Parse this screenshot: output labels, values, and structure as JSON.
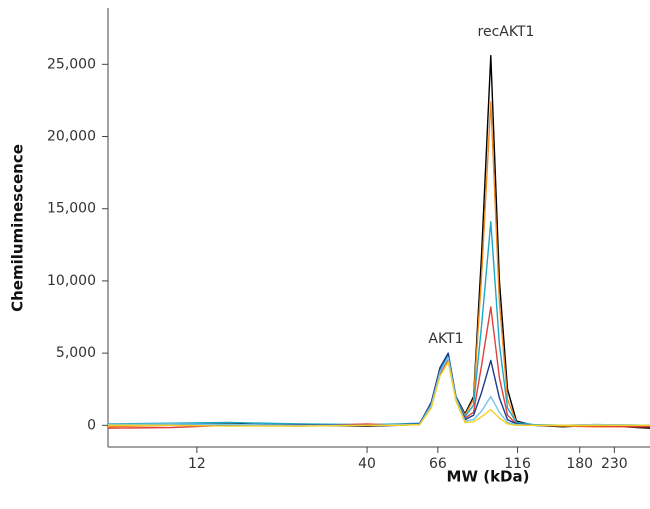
{
  "chart_data": {
    "type": "line",
    "xlabel": "MW (kDa)",
    "ylabel": "Chemiluminescence",
    "annotations": [
      "recAKT1",
      "AKT1"
    ],
    "x": [
      6.4,
      10,
      15,
      25,
      40,
      50,
      58,
      63,
      67,
      71,
      75,
      80,
      85,
      90,
      96,
      102,
      108,
      115,
      130,
      160,
      200,
      296
    ],
    "series": [
      {
        "color": "#000000",
        "values": [
          0,
          50,
          100,
          0,
          -50,
          0,
          100,
          1500,
          3800,
          4700,
          2000,
          800,
          2000,
          12000,
          25600,
          10000,
          2500,
          300,
          0,
          -100,
          0,
          -200
        ]
      },
      {
        "color": "#f08a1c",
        "values": [
          -100,
          0,
          50,
          0,
          0,
          50,
          100,
          1400,
          3600,
          4600,
          1900,
          700,
          1800,
          10500,
          22400,
          8500,
          1800,
          200,
          0,
          -50,
          -100,
          -100
        ]
      },
      {
        "color": "#1aa8c8",
        "values": [
          100,
          150,
          200,
          100,
          50,
          100,
          150,
          1500,
          3900,
          4800,
          2000,
          600,
          1400,
          7000,
          14100,
          5600,
          1200,
          200,
          50,
          0,
          50,
          0
        ]
      },
      {
        "color": "#e0403a",
        "values": [
          -200,
          -150,
          0,
          -50,
          100,
          0,
          50,
          1300,
          3500,
          4500,
          1800,
          500,
          900,
          4200,
          8200,
          3300,
          700,
          100,
          0,
          0,
          -50,
          -100
        ]
      },
      {
        "color": "#1a3a8a",
        "values": [
          0,
          50,
          0,
          50,
          0,
          50,
          100,
          1600,
          4000,
          5000,
          2000,
          400,
          700,
          2300,
          4500,
          1900,
          400,
          100,
          0,
          0,
          0,
          0
        ]
      },
      {
        "color": "#7ac4ec",
        "values": [
          50,
          100,
          50,
          0,
          0,
          50,
          50,
          1400,
          3700,
          4700,
          1900,
          300,
          400,
          1000,
          2000,
          900,
          200,
          50,
          0,
          0,
          50,
          0
        ]
      },
      {
        "color": "#f2d024",
        "values": [
          0,
          0,
          -50,
          -50,
          0,
          0,
          50,
          1200,
          3400,
          4400,
          1700,
          200,
          250,
          600,
          1100,
          500,
          100,
          0,
          0,
          0,
          0,
          0
        ]
      }
    ],
    "xlim": [
      6.4,
      296
    ],
    "log_x": true,
    "xticks": [
      12,
      40,
      66,
      116,
      180,
      230
    ],
    "ylim": [
      -1500,
      28900
    ],
    "yticks": [
      0,
      {
        "value": 5000,
        "label": "5,000"
      },
      {
        "value": 10000,
        "label": "10,000"
      },
      {
        "value": 15000,
        "label": "15,000"
      },
      {
        "value": 20000,
        "label": "20,000"
      },
      {
        "value": 25000,
        "label": "25,000"
      }
    ]
  }
}
